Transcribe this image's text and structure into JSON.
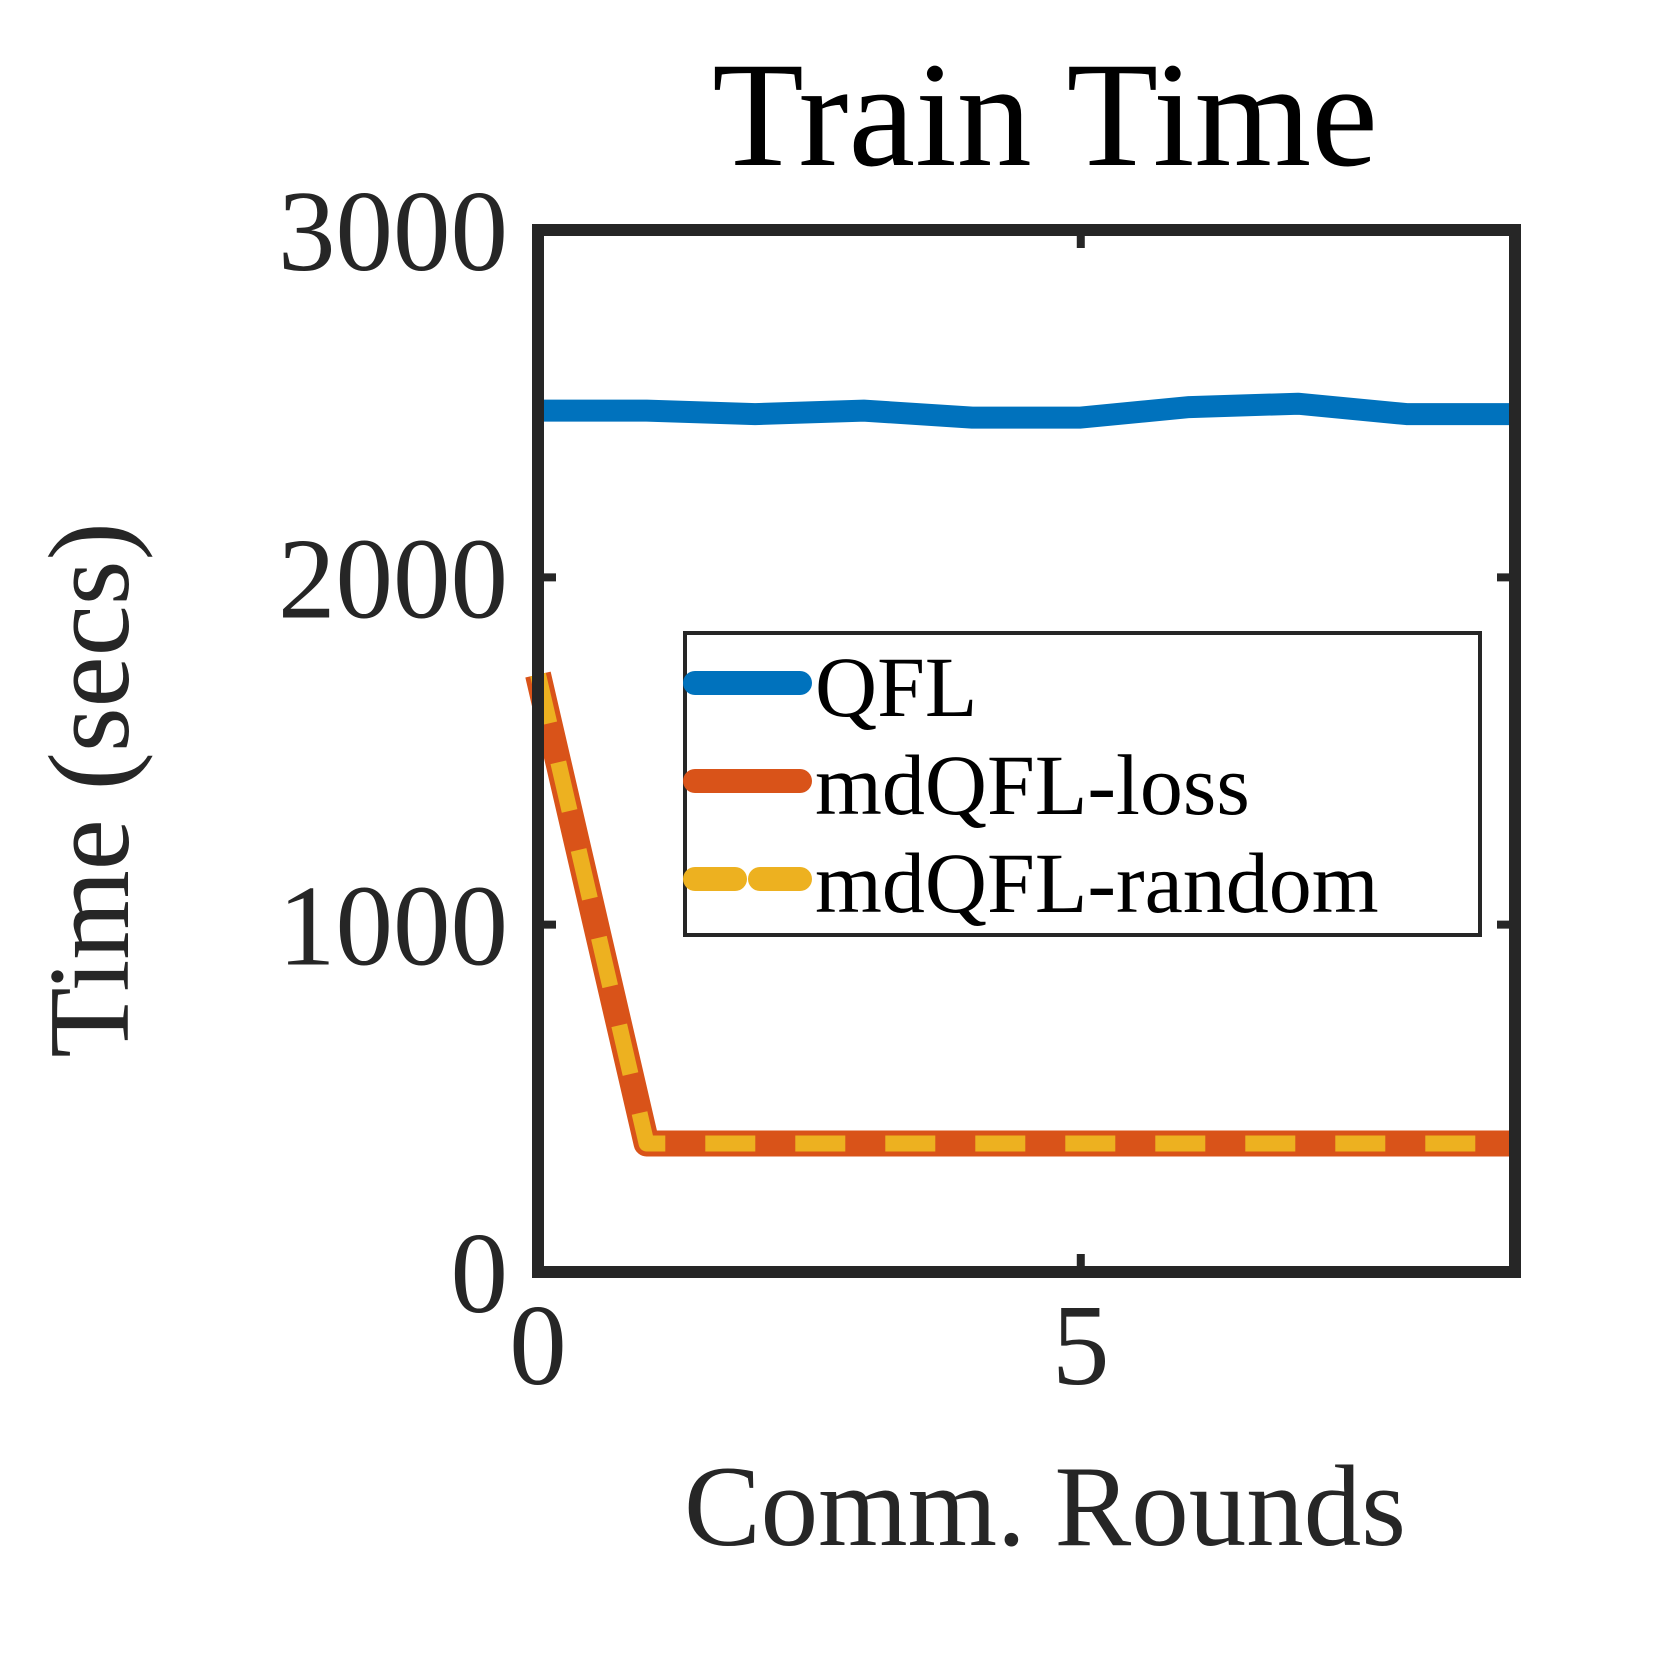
{
  "chart_data": {
    "type": "line",
    "title": "Train Time",
    "xlabel": "Comm. Rounds",
    "ylabel": "Time (secs)",
    "xlim": [
      0,
      9
    ],
    "ylim": [
      0,
      3000
    ],
    "xticks": [
      0,
      5
    ],
    "yticks": [
      0,
      1000,
      2000,
      3000
    ],
    "x_tick_labels": [
      "0",
      "5"
    ],
    "y_tick_labels": [
      "0",
      "1000",
      "2000",
      "3000"
    ],
    "grid": false,
    "legend_position": "center-right",
    "series": [
      {
        "name": "QFL",
        "color": "#0072BD",
        "style": "solid",
        "x": [
          0,
          1,
          2,
          3,
          4,
          5,
          6,
          7,
          8,
          9
        ],
        "y": [
          2480,
          2480,
          2470,
          2480,
          2460,
          2460,
          2490,
          2500,
          2470,
          2470
        ]
      },
      {
        "name": "mdQFL-loss",
        "color": "#D95319",
        "style": "solid",
        "x": [
          0,
          1,
          2,
          3,
          4,
          5,
          6,
          7,
          8,
          9
        ],
        "y": [
          1720,
          370,
          370,
          370,
          370,
          370,
          370,
          370,
          370,
          370
        ]
      },
      {
        "name": "mdQFL-random",
        "color": "#EDB120",
        "style": "dashed",
        "x": [
          0,
          1,
          2,
          3,
          4,
          5,
          6,
          7,
          8,
          9
        ],
        "y": [
          1720,
          370,
          370,
          370,
          370,
          370,
          370,
          370,
          370,
          370
        ]
      }
    ]
  }
}
